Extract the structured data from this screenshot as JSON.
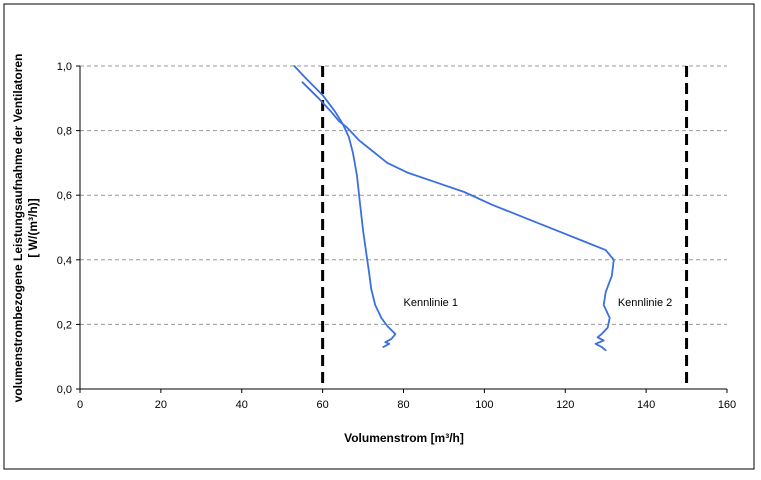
{
  "chart_data": {
    "type": "line",
    "title": "",
    "xlabel": "Volumenstrom [m³/h]",
    "ylabel_line1": "volumenstrombezogene Leistungsaufnahme der Ventilatoren",
    "ylabel_line2": "[ W/(m³/h)]",
    "xlim": [
      0,
      160
    ],
    "ylim": [
      0,
      1.0
    ],
    "x_ticks": [
      "0",
      "20",
      "40",
      "60",
      "80",
      "100",
      "120",
      "140",
      "160"
    ],
    "y_ticks": [
      "0,0",
      "0,2",
      "0,4",
      "0,6",
      "0,8",
      "1,0"
    ],
    "grid": "horizontal dashed",
    "legend": "none",
    "series": [
      {
        "name": "Kennlinie 1",
        "color": "#3b6fe0",
        "points": [
          [
            53,
            1.0
          ],
          [
            56,
            0.96
          ],
          [
            60,
            0.91
          ],
          [
            63,
            0.86
          ],
          [
            65,
            0.82
          ],
          [
            66.5,
            0.78
          ],
          [
            67.5,
            0.73
          ],
          [
            68.5,
            0.66
          ],
          [
            69.2,
            0.58
          ],
          [
            70,
            0.49
          ],
          [
            70.8,
            0.42
          ],
          [
            71.5,
            0.36
          ],
          [
            72,
            0.31
          ],
          [
            73,
            0.26
          ],
          [
            74.5,
            0.22
          ],
          [
            76,
            0.195
          ],
          [
            78,
            0.17
          ],
          [
            77,
            0.155
          ],
          [
            75.5,
            0.145
          ],
          [
            76.5,
            0.14
          ],
          [
            75,
            0.13
          ]
        ]
      },
      {
        "name": "Kennlinie 2",
        "color": "#3b6fe0",
        "points": [
          [
            55,
            0.95
          ],
          [
            59,
            0.9
          ],
          [
            62,
            0.86
          ],
          [
            64,
            0.83
          ],
          [
            66,
            0.81
          ],
          [
            69,
            0.77
          ],
          [
            72,
            0.74
          ],
          [
            76,
            0.7
          ],
          [
            81,
            0.67
          ],
          [
            88,
            0.64
          ],
          [
            95,
            0.61
          ],
          [
            102,
            0.57
          ],
          [
            110,
            0.53
          ],
          [
            118,
            0.49
          ],
          [
            125,
            0.455
          ],
          [
            130,
            0.43
          ],
          [
            132,
            0.4
          ],
          [
            131.5,
            0.35
          ],
          [
            130,
            0.3
          ],
          [
            129.5,
            0.26
          ],
          [
            131,
            0.22
          ],
          [
            130.5,
            0.19
          ],
          [
            129,
            0.17
          ],
          [
            128,
            0.16
          ],
          [
            129.5,
            0.15
          ],
          [
            127.5,
            0.14
          ],
          [
            129,
            0.13
          ],
          [
            130,
            0.12
          ]
        ]
      }
    ],
    "vertical_lines": [
      {
        "x": 60,
        "color": "#000000",
        "style": "dashed"
      },
      {
        "x": 150,
        "color": "#000000",
        "style": "dashed"
      }
    ],
    "annotations": [
      {
        "text": "Kennlinie 1",
        "x": 80,
        "y": 0.27
      },
      {
        "text": "Kennlinie 2",
        "x": 133,
        "y": 0.27
      }
    ]
  }
}
